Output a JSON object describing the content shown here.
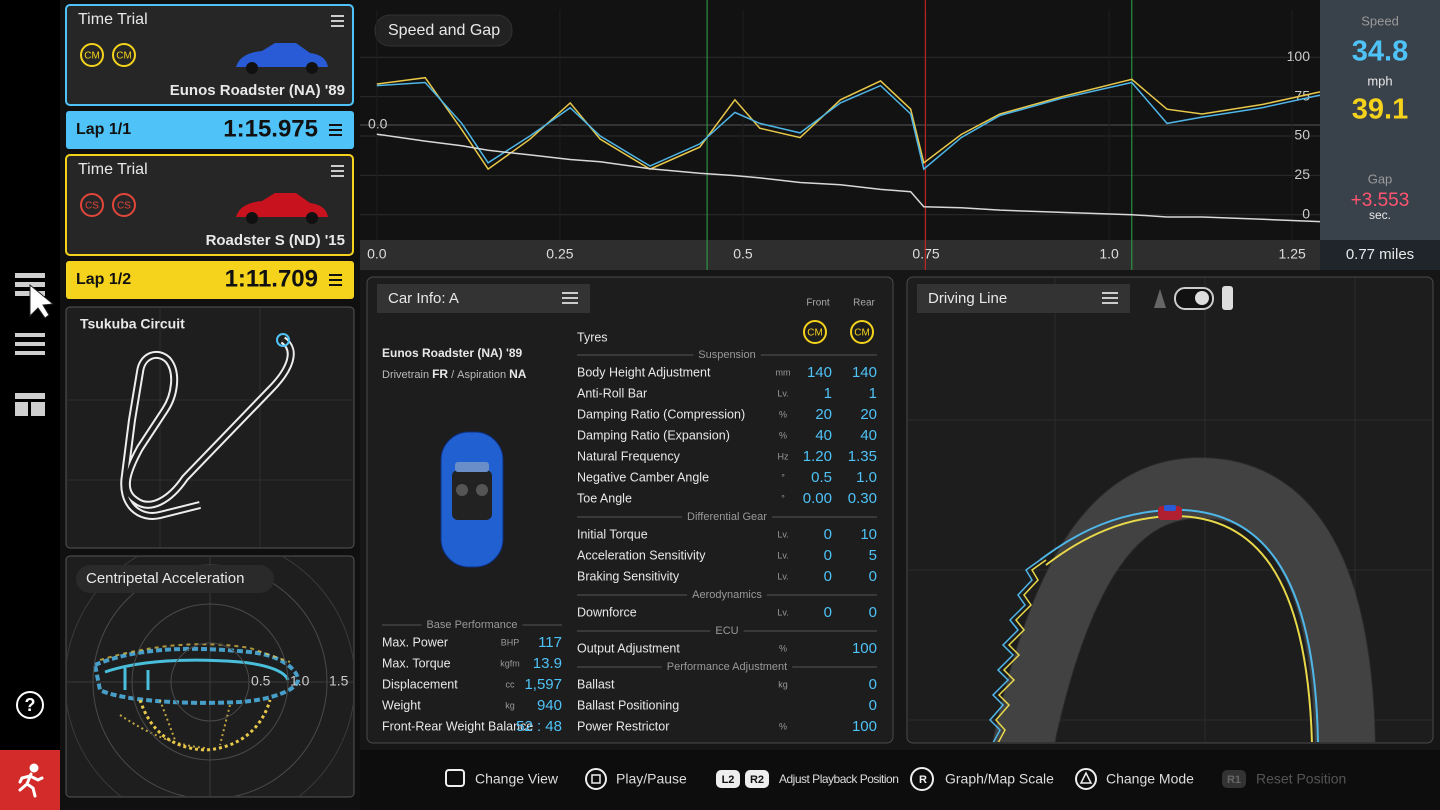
{
  "sidebar": {
    "help": "?"
  },
  "cards": [
    {
      "mode": "Time Trial",
      "tyres": [
        "CM",
        "CM"
      ],
      "tyre_color": "#f5d31c",
      "car": "Eunos Roadster (NA) '89",
      "car_color": "#2a5bd7",
      "lap": "Lap 1/1",
      "time": "1:15.975",
      "accent": "#4fc3f7"
    },
    {
      "mode": "Time Trial",
      "tyres": [
        "CS",
        "CS"
      ],
      "tyre_color": "#e0463a",
      "car": "Roadster S (ND) '15",
      "car_color": "#c8121e",
      "lap": "Lap 1/2",
      "time": "1:11.709",
      "accent": "#f5d31c"
    }
  ],
  "track_map": {
    "title": "Tsukuba Circuit"
  },
  "centripetal": {
    "title": "Centripetal Acceleration",
    "ticks": [
      0.5,
      {
        "value": 1,
        "label": "1.0"
      },
      1.5
    ]
  },
  "speed_graph": {
    "type": "line",
    "title": "Speed and Gap",
    "xlim": [
      -0.023,
      1.288
    ],
    "ylim": [
      -16,
      130
    ],
    "y2lim": [
      5,
      -5
    ],
    "xticks": [
      {
        "value": 0,
        "label": "0.0"
      },
      0.25,
      0.5,
      0.75,
      {
        "value": 1,
        "label": "1.0"
      },
      1.25
    ],
    "yticks": [
      0,
      25,
      50,
      75,
      100
    ],
    "y2ticks": [
      {
        "value": 0,
        "label": "0.0"
      }
    ],
    "grid": true,
    "x": [
      0,
      0.066,
      0.116,
      0.152,
      0.209,
      0.264,
      0.305,
      0.373,
      0.441,
      0.489,
      0.523,
      0.578,
      0.633,
      0.688,
      0.729,
      0.747,
      0.798,
      0.851,
      0.936,
      1.031,
      1.079,
      1.127,
      1.209,
      1.288
    ],
    "series": [
      {
        "color": "#e8c84a",
        "values": [
          83,
          87,
          54,
          29,
          48,
          71,
          48,
          29,
          43,
          73,
          55,
          49,
          73,
          85,
          67,
          33,
          51,
          64,
          75,
          86,
          67,
          64,
          70,
          78
        ]
      },
      {
        "color": "#4fb6e8",
        "values": [
          82,
          84,
          58,
          33,
          50,
          68,
          50,
          31,
          45,
          65,
          58,
          52,
          71,
          82,
          64,
          29,
          49,
          63,
          74,
          84,
          58,
          62,
          68,
          76
        ]
      },
      {
        "color": "#d8d8d8",
        "axis": "y2",
        "values": [
          0.4,
          0.7,
          0.9,
          1.1,
          1.3,
          1.5,
          1.6,
          1.9,
          2.1,
          2.2,
          2.3,
          2.5,
          2.6,
          2.8,
          2.9,
          3.553,
          3.6,
          3.7,
          3.8,
          3.9,
          4.0,
          4.0,
          4.1,
          4.2
        ]
      }
    ],
    "markers": [
      {
        "x": 0.451,
        "color": "#2da84a"
      },
      {
        "x": 0.749,
        "color": "#e02424"
      },
      {
        "x": 1.031,
        "color": "#2da84a"
      }
    ]
  },
  "readout": {
    "speed_label": "Speed",
    "speed_a": "34.8",
    "unit": "mph",
    "speed_b": "39.1",
    "gap_label": "Gap",
    "gap": "+3.553",
    "gap_unit": "sec.",
    "distance": "0.77 miles"
  },
  "car_info": {
    "title": "Car Info: A",
    "car": "Eunos Roadster (NA) '89",
    "drivetrain_label": "Drivetrain",
    "drivetrain": "FR",
    "sep": "/",
    "aspiration_label": "Aspiration",
    "aspiration": "NA",
    "base_title": "Base Performance",
    "base": [
      {
        "name": "Max. Power",
        "unit": "BHP",
        "value": "117"
      },
      {
        "name": "Max. Torque",
        "unit": "kgfm",
        "value": "13.9"
      },
      {
        "name": "Displacement",
        "unit": "cc",
        "value": "1,597"
      },
      {
        "name": "Weight",
        "unit": "kg",
        "value": "940"
      },
      {
        "name": "Front-Rear Weight Balance",
        "value": "52 : 48"
      }
    ],
    "front": "Front",
    "rear": "Rear",
    "tyres_label": "Tyres",
    "tyres": [
      "CM",
      "CM"
    ],
    "sections": [
      {
        "title": "Suspension",
        "rows": [
          {
            "name": "Body Height Adjustment",
            "unit": "mm",
            "front": "140",
            "rear": "140"
          },
          {
            "name": "Anti-Roll Bar",
            "unit": "Lv.",
            "front": "1",
            "rear": "1"
          },
          {
            "name": "Damping Ratio (Compression)",
            "unit": "%",
            "front": "20",
            "rear": "20"
          },
          {
            "name": "Damping Ratio (Expansion)",
            "unit": "%",
            "front": "40",
            "rear": "40"
          },
          {
            "name": "Natural Frequency",
            "unit": "Hz",
            "front": "1.20",
            "rear": "1.35"
          },
          {
            "name": "Negative Camber Angle",
            "unit": "°",
            "front": "0.5",
            "rear": "1.0"
          },
          {
            "name": "Toe Angle",
            "unit": "°",
            "front": "0.00",
            "rear": "0.30"
          }
        ]
      },
      {
        "title": "Differential Gear",
        "rows": [
          {
            "name": "Initial Torque",
            "unit": "Lv.",
            "front": "0",
            "rear": "10"
          },
          {
            "name": "Acceleration Sensitivity",
            "unit": "Lv.",
            "front": "0",
            "rear": "5"
          },
          {
            "name": "Braking Sensitivity",
            "unit": "Lv.",
            "front": "0",
            "rear": "0"
          }
        ]
      },
      {
        "title": "Aerodynamics",
        "rows": [
          {
            "name": "Downforce",
            "unit": "Lv.",
            "front": "0",
            "rear": "0"
          }
        ]
      },
      {
        "title": "ECU",
        "rows": [
          {
            "name": "Output Adjustment",
            "unit": "%",
            "value": "100"
          }
        ]
      },
      {
        "title": "Performance Adjustment",
        "rows": [
          {
            "name": "Ballast",
            "unit": "kg",
            "value": "0"
          },
          {
            "name": "Ballast Positioning",
            "value": "0"
          },
          {
            "name": "Power Restrictor",
            "unit": "%",
            "value": "100"
          }
        ]
      }
    ]
  },
  "driving_line": {
    "title": "Driving Line"
  },
  "controls": [
    {
      "label": "Change View"
    },
    {
      "label": "Play/Pause"
    },
    {
      "buttons": [
        "L2",
        "R2"
      ],
      "label": "Adjust Playback Position"
    },
    {
      "button": "R",
      "label": "Graph/Map Scale"
    },
    {
      "label": "Change Mode"
    },
    {
      "button": "R1",
      "label": "Reset Position"
    }
  ]
}
